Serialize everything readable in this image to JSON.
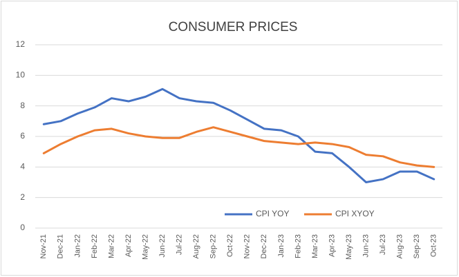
{
  "chart_data": {
    "type": "line",
    "title": "CONSUMER PRICES",
    "categories": [
      "Nov-21",
      "Dec-21",
      "Jan-22",
      "Feb-22",
      "Mar-22",
      "Apr-22",
      "May-22",
      "Jun-22",
      "Jul-22",
      "Aug-22",
      "Sep-22",
      "Oct-22",
      "Nov-22",
      "Dec-22",
      "Jan-23",
      "Feb-23",
      "Mar-23",
      "Apr-23",
      "May-23",
      "Jun-23",
      "Jul-23",
      "Aug-23",
      "Sep-23",
      "Oct-23"
    ],
    "series": [
      {
        "name": "CPI YOY",
        "color": "#4472c4",
        "values": [
          6.8,
          7.0,
          7.5,
          7.9,
          8.5,
          8.3,
          8.6,
          9.1,
          8.5,
          8.3,
          8.2,
          7.7,
          7.1,
          6.5,
          6.4,
          6.0,
          5.0,
          4.9,
          4.0,
          3.0,
          3.2,
          3.7,
          3.7,
          3.2
        ]
      },
      {
        "name": "CPI XYOY",
        "color": "#ed7d31",
        "values": [
          4.9,
          5.5,
          6.0,
          6.4,
          6.5,
          6.2,
          6.0,
          5.9,
          5.9,
          6.3,
          6.6,
          6.3,
          6.0,
          5.7,
          5.6,
          5.5,
          5.6,
          5.5,
          5.3,
          4.8,
          4.7,
          4.3,
          4.1,
          4.0
        ]
      }
    ],
    "ylim": [
      0,
      12
    ],
    "yticks": [
      0,
      2,
      4,
      6,
      8,
      10,
      12
    ],
    "grid": true,
    "legend": "lower right"
  }
}
